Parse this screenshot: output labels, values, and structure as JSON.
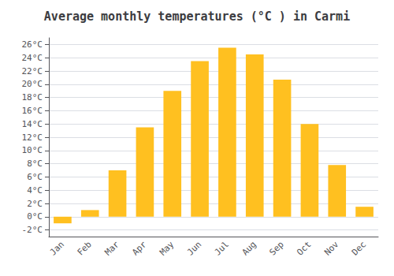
{
  "chart_data": {
    "type": "bar",
    "title": "Average monthly temperatures (°C ) in Carmi",
    "categories": [
      "Jan",
      "Feb",
      "Mar",
      "Apr",
      "May",
      "Jun",
      "Jul",
      "Aug",
      "Sep",
      "Oct",
      "Nov",
      "Dec"
    ],
    "values": [
      -1.0,
      1.0,
      7.0,
      13.5,
      19.0,
      23.5,
      25.5,
      24.5,
      20.7,
      14.0,
      7.8,
      1.5
    ],
    "color": "#FFC020",
    "ylim": [
      -3,
      27
    ],
    "yticks": [
      {
        "value": -2,
        "label": "-2°C"
      },
      {
        "value": 0,
        "label": "0°C"
      },
      {
        "value": 2,
        "label": "2°C"
      },
      {
        "value": 4,
        "label": "4°C"
      },
      {
        "value": 6,
        "label": "6°C"
      },
      {
        "value": 8,
        "label": "8°C"
      },
      {
        "value": 10,
        "label": "10°C"
      },
      {
        "value": 12,
        "label": "12°C"
      },
      {
        "value": 14,
        "label": "14°C"
      },
      {
        "value": 16,
        "label": "16°C"
      },
      {
        "value": 18,
        "label": "18°C"
      },
      {
        "value": 20,
        "label": "20°C"
      },
      {
        "value": 22,
        "label": "22°C"
      },
      {
        "value": 24,
        "label": "24°C"
      },
      {
        "value": 26,
        "label": "26°C"
      }
    ],
    "grid": true
  }
}
